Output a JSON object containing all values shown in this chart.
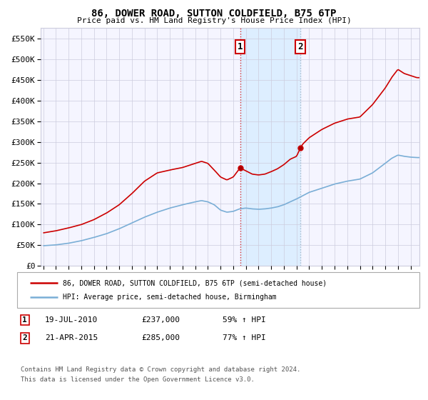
{
  "title": "86, DOWER ROAD, SUTTON COLDFIELD, B75 6TP",
  "subtitle": "Price paid vs. HM Land Registry's House Price Index (HPI)",
  "legend_line1": "86, DOWER ROAD, SUTTON COLDFIELD, B75 6TP (semi-detached house)",
  "legend_line2": "HPI: Average price, semi-detached house, Birmingham",
  "annotation1_date": "19-JUL-2010",
  "annotation1_price": "£237,000",
  "annotation1_hpi": "59% ↑ HPI",
  "annotation2_date": "21-APR-2015",
  "annotation2_price": "£285,000",
  "annotation2_hpi": "77% ↑ HPI",
  "footnote1": "Contains HM Land Registry data © Crown copyright and database right 2024.",
  "footnote2": "This data is licensed under the Open Government Licence v3.0.",
  "red_color": "#cc0000",
  "blue_color": "#7aaed6",
  "shade_color": "#ddeeff",
  "grid_color": "#ccccdd",
  "bg_color": "#ffffff",
  "plot_bg": "#f5f5ff",
  "ylim": [
    0,
    575000
  ],
  "yticks": [
    0,
    50000,
    100000,
    150000,
    200000,
    250000,
    300000,
    350000,
    400000,
    450000,
    500000,
    550000
  ],
  "xlim_left": 1994.8,
  "xlim_right": 2024.7,
  "transaction1_x": 2010.54,
  "transaction1_y": 237000,
  "transaction2_x": 2015.3,
  "transaction2_y": 285000,
  "shade_x1": 2010.54,
  "shade_x2": 2015.3,
  "red_line_keypoints": [
    [
      1995.0,
      80000
    ],
    [
      1996.0,
      85000
    ],
    [
      1997.0,
      92000
    ],
    [
      1998.0,
      100000
    ],
    [
      1999.0,
      112000
    ],
    [
      2000.0,
      128000
    ],
    [
      2001.0,
      148000
    ],
    [
      2002.0,
      175000
    ],
    [
      2003.0,
      205000
    ],
    [
      2004.0,
      225000
    ],
    [
      2005.0,
      232000
    ],
    [
      2006.0,
      238000
    ],
    [
      2007.0,
      248000
    ],
    [
      2007.5,
      253000
    ],
    [
      2008.0,
      248000
    ],
    [
      2008.5,
      232000
    ],
    [
      2009.0,
      215000
    ],
    [
      2009.5,
      208000
    ],
    [
      2010.0,
      215000
    ],
    [
      2010.54,
      237000
    ],
    [
      2011.0,
      230000
    ],
    [
      2011.5,
      222000
    ],
    [
      2012.0,
      220000
    ],
    [
      2012.5,
      222000
    ],
    [
      2013.0,
      228000
    ],
    [
      2013.5,
      235000
    ],
    [
      2014.0,
      245000
    ],
    [
      2014.5,
      258000
    ],
    [
      2015.0,
      265000
    ],
    [
      2015.3,
      285000
    ],
    [
      2015.5,
      295000
    ],
    [
      2016.0,
      310000
    ],
    [
      2017.0,
      330000
    ],
    [
      2018.0,
      345000
    ],
    [
      2019.0,
      355000
    ],
    [
      2020.0,
      360000
    ],
    [
      2021.0,
      390000
    ],
    [
      2022.0,
      430000
    ],
    [
      2022.5,
      455000
    ],
    [
      2023.0,
      475000
    ],
    [
      2023.5,
      465000
    ],
    [
      2024.0,
      460000
    ],
    [
      2024.5,
      455000
    ]
  ],
  "blue_line_keypoints": [
    [
      1995.0,
      49000
    ],
    [
      1996.0,
      51000
    ],
    [
      1997.0,
      55000
    ],
    [
      1998.0,
      61000
    ],
    [
      1999.0,
      69000
    ],
    [
      2000.0,
      78000
    ],
    [
      2001.0,
      90000
    ],
    [
      2002.0,
      104000
    ],
    [
      2003.0,
      118000
    ],
    [
      2004.0,
      130000
    ],
    [
      2005.0,
      140000
    ],
    [
      2006.0,
      148000
    ],
    [
      2007.0,
      155000
    ],
    [
      2007.5,
      158000
    ],
    [
      2008.0,
      155000
    ],
    [
      2008.5,
      148000
    ],
    [
      2009.0,
      135000
    ],
    [
      2009.5,
      130000
    ],
    [
      2010.0,
      132000
    ],
    [
      2010.5,
      138000
    ],
    [
      2011.0,
      140000
    ],
    [
      2011.5,
      138000
    ],
    [
      2012.0,
      137000
    ],
    [
      2012.5,
      138000
    ],
    [
      2013.0,
      140000
    ],
    [
      2013.5,
      143000
    ],
    [
      2014.0,
      148000
    ],
    [
      2014.5,
      155000
    ],
    [
      2015.0,
      162000
    ],
    [
      2015.5,
      170000
    ],
    [
      2016.0,
      178000
    ],
    [
      2017.0,
      188000
    ],
    [
      2018.0,
      198000
    ],
    [
      2019.0,
      205000
    ],
    [
      2020.0,
      210000
    ],
    [
      2021.0,
      225000
    ],
    [
      2022.0,
      248000
    ],
    [
      2022.5,
      260000
    ],
    [
      2023.0,
      268000
    ],
    [
      2023.5,
      265000
    ],
    [
      2024.0,
      263000
    ],
    [
      2024.5,
      262000
    ]
  ]
}
